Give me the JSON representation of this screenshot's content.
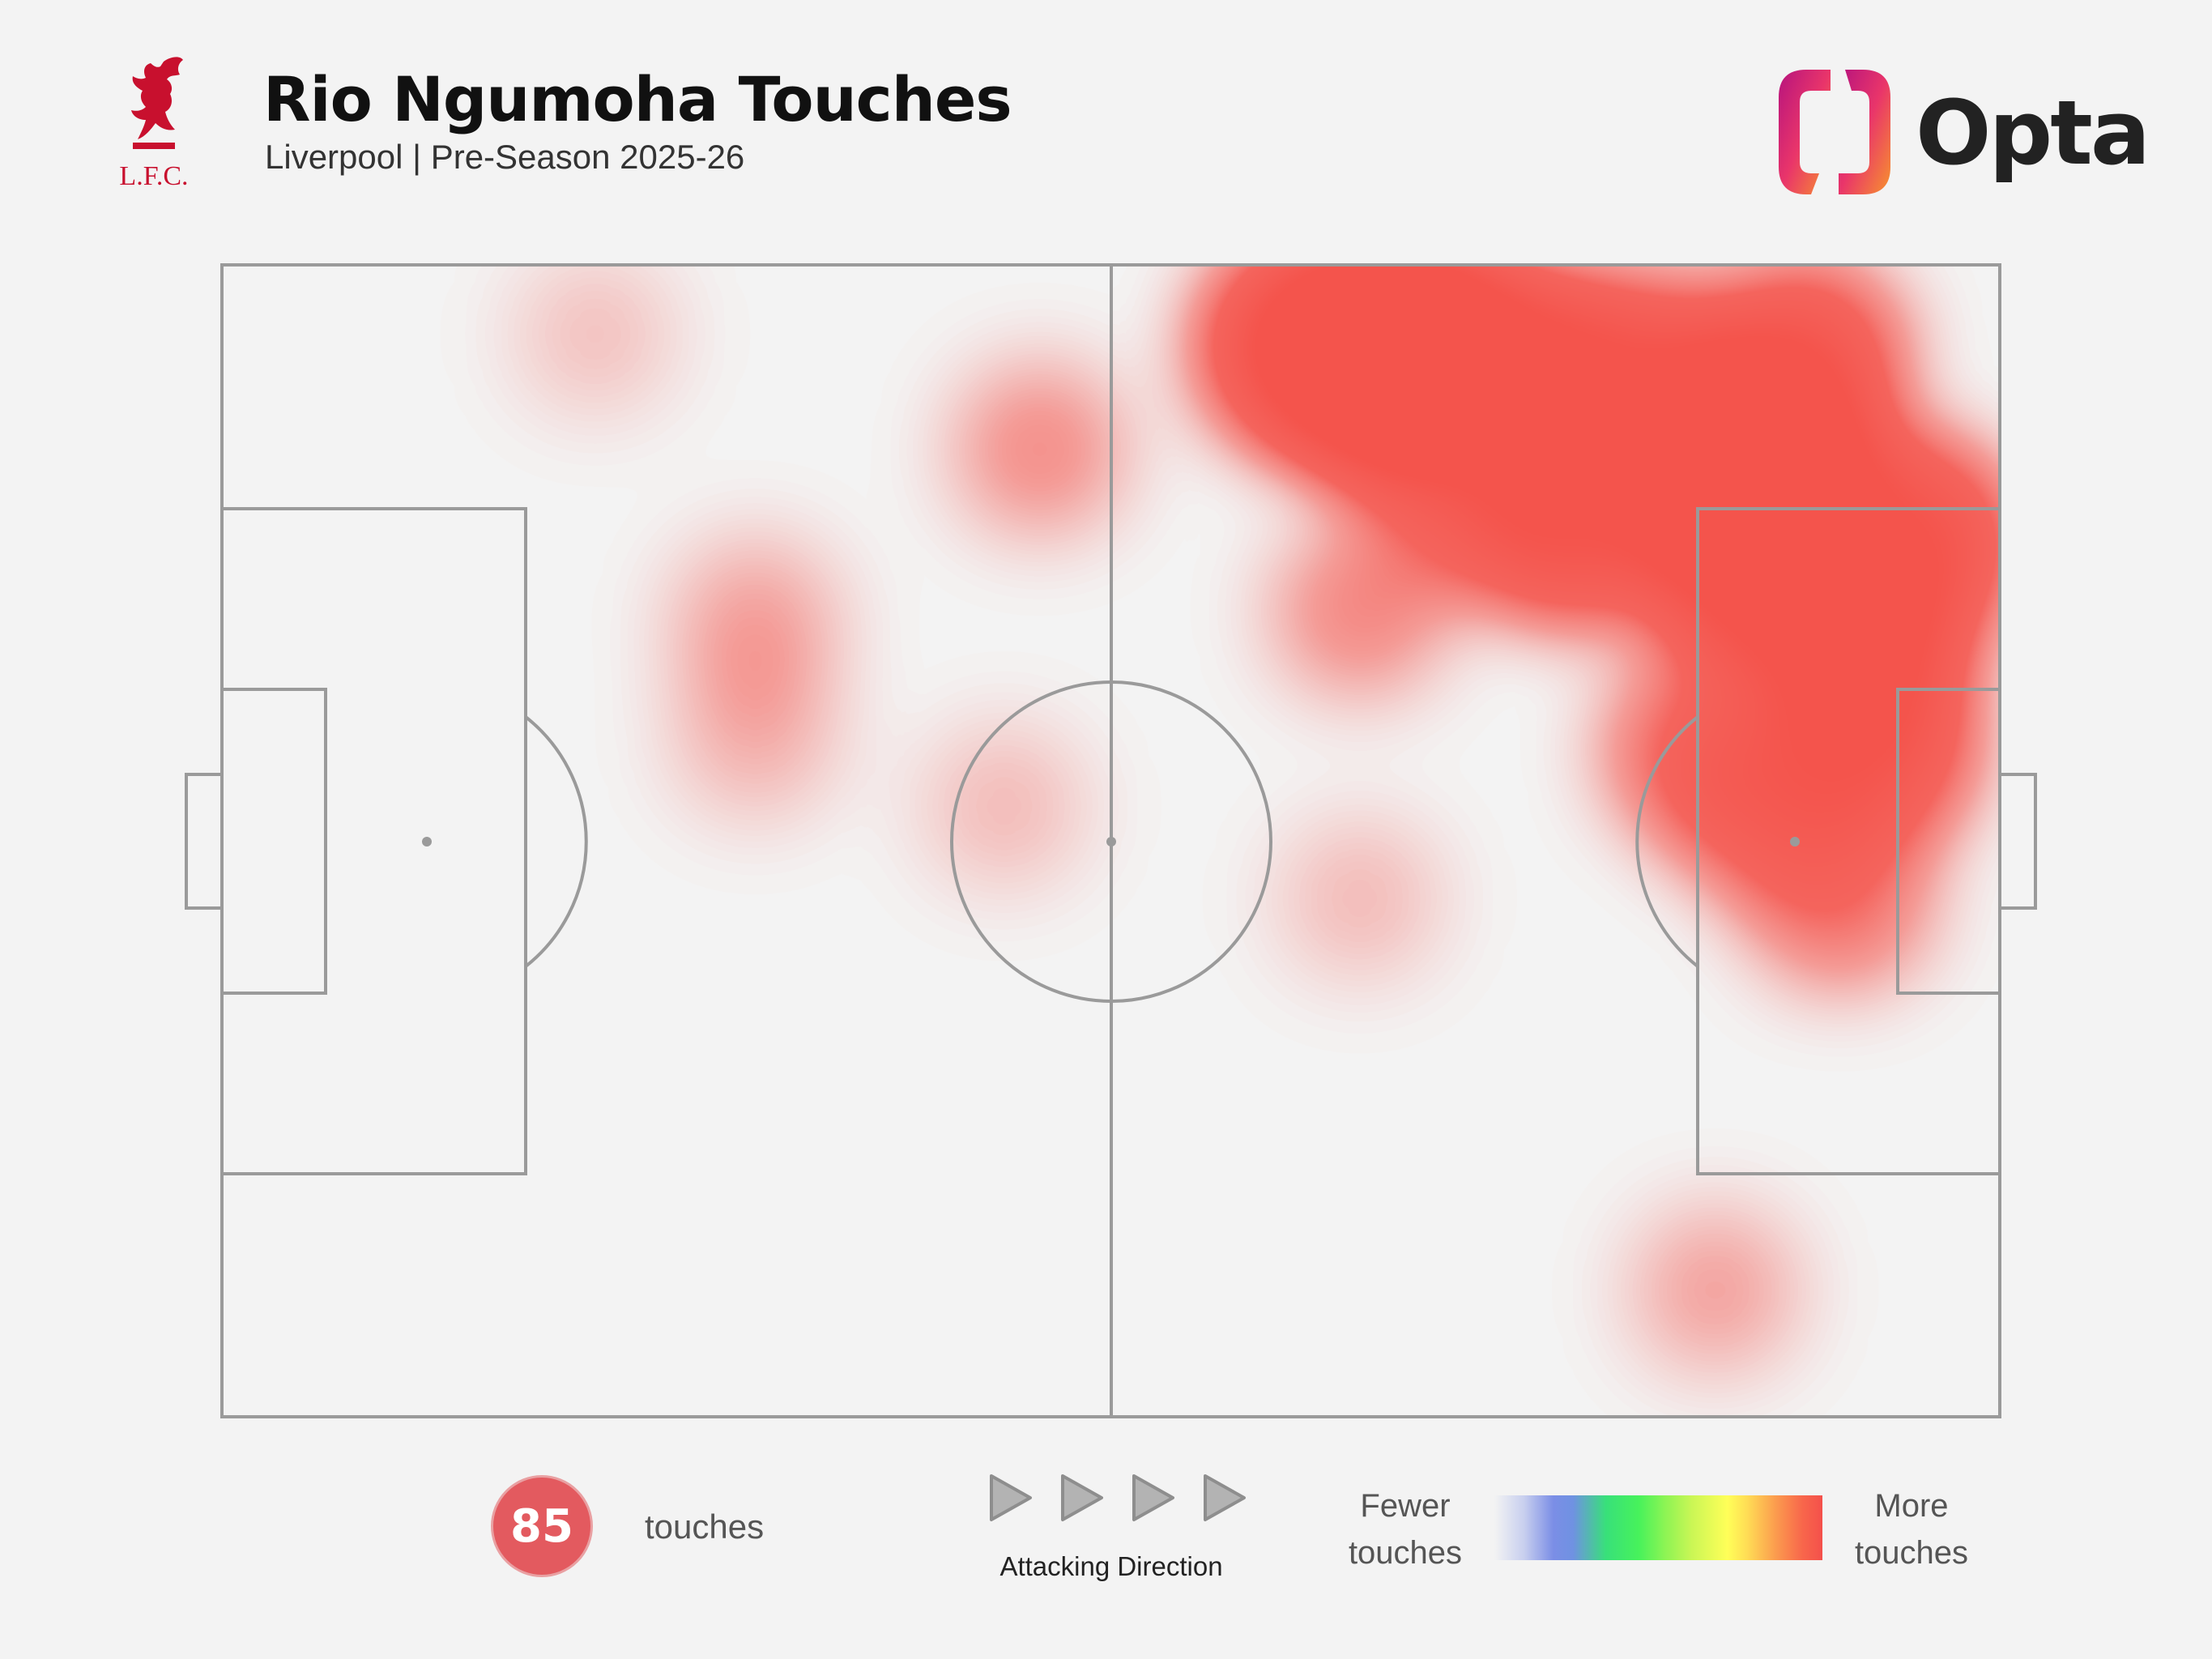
{
  "header": {
    "title": "Rio Ngumoha Touches",
    "subtitle": "Liverpool | Pre-Season 2025-26",
    "club_crest_text": "L.F.C.",
    "brand": "Opta"
  },
  "footer": {
    "touches_value": "85",
    "touches_label": "touches",
    "attacking_direction_label": "Attacking Direction",
    "legend_low_line1": "Fewer",
    "legend_low_line2": "touches",
    "legend_high_line1": "More",
    "legend_high_line2": "touches"
  },
  "colors": {
    "background": "#f3f3f3",
    "pitch_lines": "#9a9a9a",
    "badge": "#e35a5f",
    "crest_red": "#c8102e",
    "heat_low": "#7b8ee6",
    "heat_mid": "#47f25b",
    "heat_high": "#f4504b"
  },
  "icons": {
    "crest": "liverbird-crest-icon",
    "brand_mark": "opta-mark-icon",
    "direction": "play-arrow-icon"
  },
  "chart_data": {
    "type": "heatmap",
    "title": "Rio Ngumoha Touches",
    "subtitle": "Liverpool | Pre-Season 2025-26",
    "total_touches": 85,
    "x_range": [
      0,
      100
    ],
    "y_range": [
      0,
      100
    ],
    "attacking_direction": "left-to-right",
    "legend": {
      "low": "Fewer touches",
      "high": "More touches",
      "placement": "bottom-right"
    },
    "density_hotspots": [
      {
        "x": 66,
        "y": 8,
        "intensity": 1.0
      },
      {
        "x": 61,
        "y": 7,
        "intensity": 0.55
      },
      {
        "x": 73,
        "y": 9,
        "intensity": 0.55
      },
      {
        "x": 86,
        "y": 17,
        "intensity": 0.9
      },
      {
        "x": 86,
        "y": 26,
        "intensity": 0.6
      },
      {
        "x": 80,
        "y": 10,
        "intensity": 0.45
      },
      {
        "x": 89,
        "y": 8,
        "intensity": 0.4
      },
      {
        "x": 76,
        "y": 22,
        "intensity": 0.5
      },
      {
        "x": 92,
        "y": 33,
        "intensity": 0.55
      },
      {
        "x": 95,
        "y": 24,
        "intensity": 0.5
      },
      {
        "x": 93,
        "y": 42,
        "intensity": 0.42
      },
      {
        "x": 87,
        "y": 47,
        "intensity": 0.3
      },
      {
        "x": 70,
        "y": 20,
        "intensity": 0.3
      },
      {
        "x": 83,
        "y": 42,
        "intensity": 0.28
      },
      {
        "x": 91,
        "y": 55,
        "intensity": 0.24
      },
      {
        "x": 64,
        "y": 30,
        "intensity": 0.18
      },
      {
        "x": 46,
        "y": 16,
        "intensity": 0.17
      },
      {
        "x": 30,
        "y": 31,
        "intensity": 0.13
      },
      {
        "x": 30,
        "y": 41,
        "intensity": 0.1
      },
      {
        "x": 21,
        "y": 6,
        "intensity": 0.08
      },
      {
        "x": 44,
        "y": 47,
        "intensity": 0.09
      },
      {
        "x": 64,
        "y": 55,
        "intensity": 0.09
      },
      {
        "x": 84,
        "y": 89,
        "intensity": 0.13
      }
    ]
  }
}
